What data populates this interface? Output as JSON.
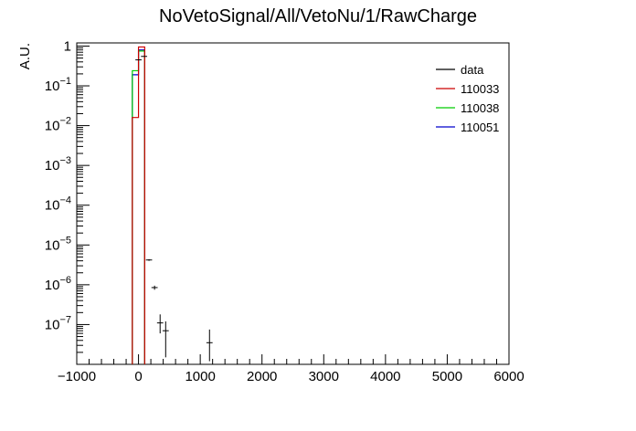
{
  "chart_data": {
    "type": "histogram",
    "title": "NoVetoSignal/All/VetoNu/1/RawCharge",
    "ylabel": "A.U.",
    "xlabel": "",
    "xlim": [
      -1000,
      6000
    ],
    "ylim": [
      1e-08,
      1.2
    ],
    "yscale": "log",
    "grid": false,
    "legend_position": "top-right",
    "x_ticks": [
      -1000,
      0,
      1000,
      2000,
      3000,
      4000,
      5000,
      6000
    ],
    "x_tick_labels": [
      "−1000",
      "0",
      "1000",
      "2000",
      "3000",
      "4000",
      "5000",
      "6000"
    ],
    "y_ticks": [
      {
        "value": 1,
        "base": "1",
        "exp": ""
      },
      {
        "value": 0.1,
        "base": "10",
        "exp": "−1"
      },
      {
        "value": 0.01,
        "base": "10",
        "exp": "−2"
      },
      {
        "value": 0.001,
        "base": "10",
        "exp": "−3"
      },
      {
        "value": 0.0001,
        "base": "10",
        "exp": "−4"
      },
      {
        "value": 1e-05,
        "base": "10",
        "exp": "−5"
      },
      {
        "value": 1e-06,
        "base": "10",
        "exp": "−6"
      },
      {
        "value": 1e-07,
        "base": "10",
        "exp": "−7"
      }
    ],
    "series": [
      {
        "name": "data",
        "kind": "points",
        "color": "#000000",
        "points": [
          {
            "x": 0,
            "y": 0.45,
            "xerr": 50,
            "ylo": 0.45,
            "yhi": 0.45
          },
          {
            "x": 90,
            "y": 0.55,
            "xerr": 50,
            "ylo": 0.55,
            "yhi": 0.55
          },
          {
            "x": 170,
            "y": 4.2e-06,
            "xerr": 50,
            "ylo": 4e-06,
            "yhi": 4.4e-06
          },
          {
            "x": 260,
            "y": 8.5e-07,
            "xerr": 50,
            "ylo": 7.5e-07,
            "yhi": 9.5e-07
          },
          {
            "x": 350,
            "y": 1.1e-07,
            "xerr": 50,
            "ylo": 6e-08,
            "yhi": 1.8e-07
          },
          {
            "x": 440,
            "y": 7e-08,
            "xerr": 50,
            "ylo": 1.5e-08,
            "yhi": 1.2e-07
          },
          {
            "x": 1150,
            "y": 3.5e-08,
            "xerr": 50,
            "ylo": 1.2e-08,
            "yhi": 7.5e-08
          }
        ]
      },
      {
        "name": "110033",
        "kind": "step",
        "color": "#cc0000",
        "bins": [
          {
            "x0": -100,
            "x1": 0,
            "y": 0.016
          },
          {
            "x0": 0,
            "x1": 100,
            "y": 0.95
          }
        ]
      },
      {
        "name": "110038",
        "kind": "step",
        "color": "#00cc00",
        "bins": [
          {
            "x0": -100,
            "x1": 0,
            "y": 0.24
          },
          {
            "x0": 0,
            "x1": 100,
            "y": 0.75
          }
        ]
      },
      {
        "name": "110051",
        "kind": "step",
        "color": "#0000cc",
        "bins": [
          {
            "x0": -100,
            "x1": 0,
            "y": 0.19
          },
          {
            "x0": 0,
            "x1": 100,
            "y": 0.8
          }
        ]
      }
    ]
  }
}
